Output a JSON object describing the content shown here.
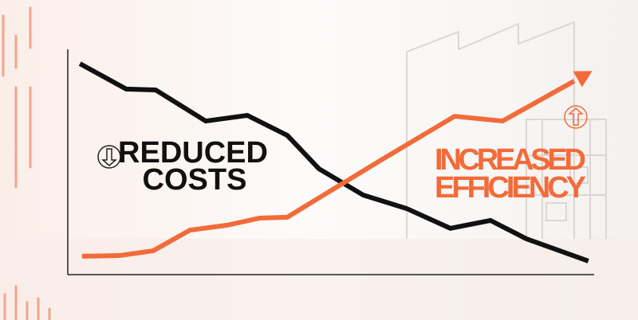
{
  "chart_data": {
    "type": "line",
    "annotations": {
      "reduced_costs": [
        "REDUCED",
        "COSTS"
      ],
      "increased_efficiency": [
        "INCREASED",
        "EFFICIENCY"
      ]
    },
    "xlim": [
      0,
      100
    ],
    "ylim": [
      0,
      100
    ],
    "series": [
      {
        "color": "#111111",
        "x": [
          2.3,
          11.1,
          16.7,
          26.2,
          34.1,
          41.7,
          47.7,
          56.1,
          64.4,
          72.7,
          80.3,
          87.1,
          98.9
        ],
        "values": [
          93,
          81.8,
          81.4,
          67.7,
          70.2,
          61.4,
          46.7,
          35.1,
          29.1,
          20.4,
          23.9,
          15.8,
          6.0
        ]
      },
      {
        "color": "#f26b3a",
        "x": [
          2.7,
          9.8,
          16.2,
          23.2,
          30.3,
          36.4,
          41.7,
          50.8,
          59.8,
          73.5,
          82.6,
          96.2
        ],
        "values": [
          8.1,
          8.4,
          10.5,
          19.6,
          21.8,
          24.9,
          25.3,
          38.2,
          50.9,
          69.8,
          67.7,
          85.3
        ]
      }
    ]
  }
}
